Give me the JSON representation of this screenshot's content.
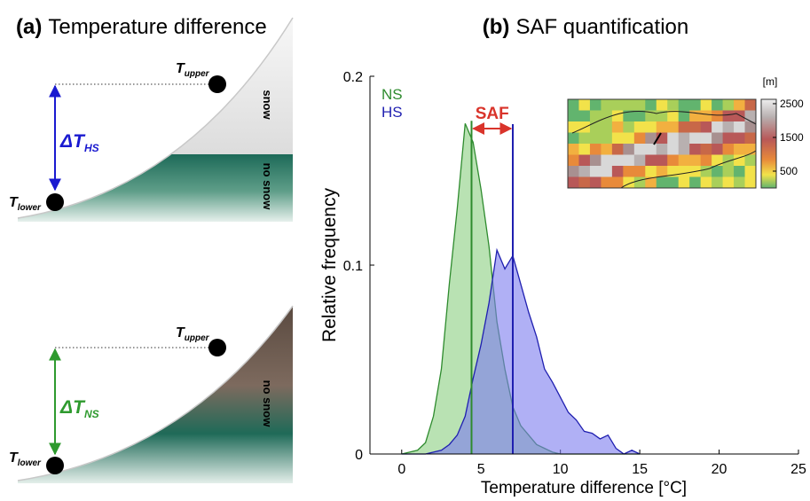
{
  "panel_a": {
    "label": "(a)",
    "title": "Temperature difference",
    "top": {
      "upper": {
        "symbol": "T",
        "subscript": "upper"
      },
      "lower": {
        "symbol": "T",
        "subscript": "lower"
      },
      "delta": {
        "symbol": "ΔT",
        "subscript": "HS"
      },
      "zone_upper": "snow",
      "zone_lower": "no snow"
    },
    "bottom": {
      "upper": {
        "symbol": "T",
        "subscript": "upper"
      },
      "lower": {
        "symbol": "T",
        "subscript": "lower"
      },
      "delta": {
        "symbol": "ΔT",
        "subscript": "NS"
      },
      "zone": "no snow"
    }
  },
  "chart_data": {
    "type": "area",
    "panel_label": "(b)",
    "title": "SAF quantification",
    "xlabel": "Temperature difference [°C]",
    "ylabel": "Relative frequency",
    "x": [
      0,
      0.5,
      1,
      1.5,
      2,
      2.5,
      3,
      3.5,
      4,
      4.5,
      5,
      5.5,
      6,
      6.5,
      7,
      7.5,
      8,
      8.5,
      9,
      9.5,
      10,
      10.5,
      11,
      11.5,
      12,
      12.5,
      13,
      13.5,
      14,
      14.5,
      15
    ],
    "xlim": [
      -2,
      25
    ],
    "xticks": [
      0,
      5,
      10,
      15,
      20,
      25
    ],
    "ylim": [
      0,
      0.2
    ],
    "yticks": [
      0,
      0.1,
      0.2
    ],
    "series": [
      {
        "name": "NS",
        "color": "#2e8b2e",
        "fill": "#b9e2b3",
        "mean": 4.4,
        "values": [
          0,
          0.001,
          0.002,
          0.006,
          0.02,
          0.045,
          0.09,
          0.13,
          0.175,
          0.165,
          0.14,
          0.11,
          0.07,
          0.045,
          0.025,
          0.015,
          0.01,
          0.005,
          0.003,
          0.001,
          0,
          0,
          0,
          0,
          0,
          0,
          0,
          0,
          0,
          0,
          0
        ]
      },
      {
        "name": "HS",
        "color": "#1f1fb0",
        "fill": "#7c7cee",
        "mean": 7.0,
        "values": [
          0,
          0,
          0,
          0,
          0.001,
          0.002,
          0.005,
          0.01,
          0.02,
          0.04,
          0.058,
          0.08,
          0.108,
          0.098,
          0.105,
          0.09,
          0.075,
          0.062,
          0.045,
          0.038,
          0.03,
          0.022,
          0.018,
          0.012,
          0.011,
          0.008,
          0.01,
          0.003,
          0,
          0.002,
          0
        ]
      }
    ],
    "annotation": "SAF",
    "annotation_color": "#d9342b",
    "inset": {
      "colorbar_label": "[m]",
      "colorbar_ticks": [
        500,
        1500,
        2500
      ],
      "colorbar_lim": [
        0,
        2630
      ]
    }
  }
}
